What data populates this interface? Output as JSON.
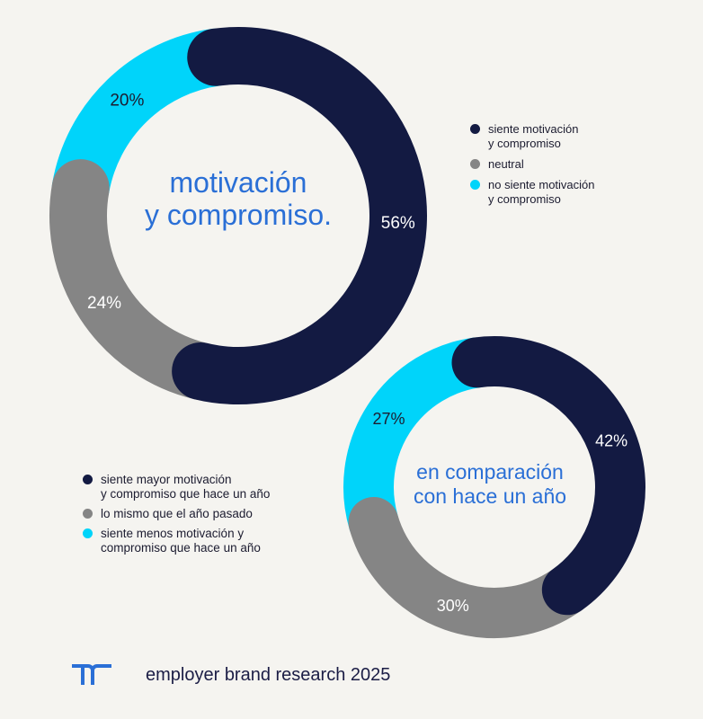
{
  "colors": {
    "dark_navy": "#131a42",
    "gray": "#858585",
    "cyan": "#00d4fa",
    "title_blue": "#2a6fd6",
    "background": "#f5f4f0"
  },
  "chart_data": [
    {
      "type": "pie",
      "variant": "donut",
      "title_lines": [
        "motivación",
        "y compromiso."
      ],
      "series": [
        {
          "name": "siente motivación y compromiso",
          "value": 56,
          "label": "56%",
          "color": "#131a42"
        },
        {
          "name": "neutral",
          "value": 24,
          "label": "24%",
          "color": "#858585"
        },
        {
          "name": "no siente motivación y compromiso",
          "value": 20,
          "label": "20%",
          "color": "#00d4fa"
        }
      ],
      "legend": {
        "placement": "right",
        "items": [
          {
            "lines": [
              "siente motivación",
              "y compromiso"
            ],
            "color": "#131a42"
          },
          {
            "lines": [
              "neutral"
            ],
            "color": "#858585"
          },
          {
            "lines": [
              "no siente motivación",
              "y compromiso"
            ],
            "color": "#00d4fa"
          }
        ]
      }
    },
    {
      "type": "pie",
      "variant": "donut",
      "title_lines": [
        "en comparación",
        "con hace un año"
      ],
      "series": [
        {
          "name": "siente mayor motivación y compromiso que hace un año",
          "value": 42,
          "label": "42%",
          "color": "#131a42"
        },
        {
          "name": "lo mismo que el año pasado",
          "value": 30,
          "label": "30%",
          "color": "#858585"
        },
        {
          "name": "siente menos motivación y compromiso que hace un año",
          "value": 27,
          "label": "27%",
          "color": "#00d4fa"
        }
      ],
      "legend": {
        "placement": "left",
        "items": [
          {
            "lines": [
              "siente mayor motivación",
              "y compromiso que hace un año"
            ],
            "color": "#131a42"
          },
          {
            "lines": [
              "lo mismo que el año pasado"
            ],
            "color": "#858585"
          },
          {
            "lines": [
              "siente menos motivación y",
              "compromiso que hace un año"
            ],
            "color": "#00d4fa"
          }
        ]
      }
    }
  ],
  "footer": {
    "logo_icon": "randstad-logo-icon",
    "text": "employer brand research 2025"
  }
}
